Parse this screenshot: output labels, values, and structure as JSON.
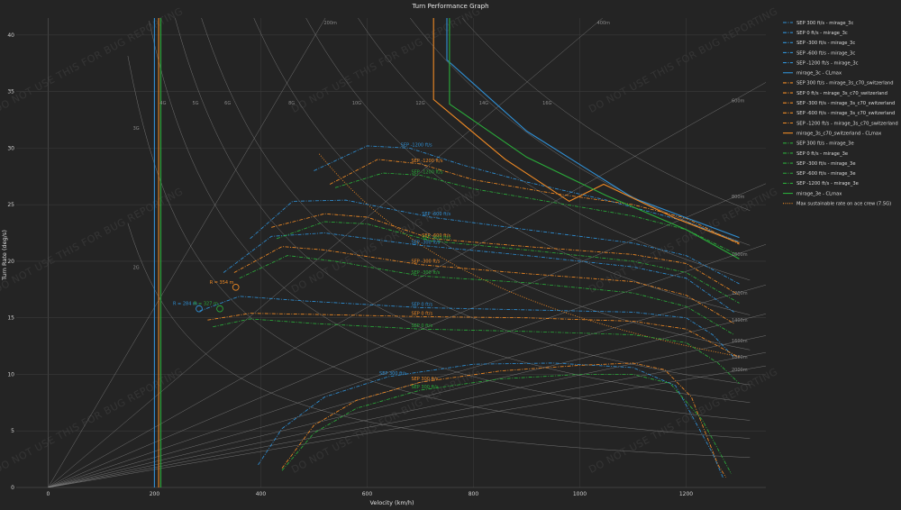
{
  "chart_data": {
    "type": "line",
    "title": "Turn Performance Graph",
    "xlabel": "Velocity (km/h)",
    "ylabel": "Turn Rate (deg/s)",
    "xlim": [
      -60,
      1350
    ],
    "ylim": [
      0,
      41.5
    ],
    "x_ticks": [
      0,
      200,
      400,
      600,
      800,
      1000,
      1200
    ],
    "y_ticks": [
      0,
      5,
      10,
      15,
      20,
      25,
      30,
      35,
      40
    ],
    "grid": true,
    "legend_position": "right",
    "watermark": "DO NOT USE THIS FOR BUG REPORTING",
    "colors": {
      "blue": "#2f8fd4",
      "orange": "#f08a24",
      "green": "#2aaa3a",
      "grid": "#3a3a3a",
      "ref": "#8d8d8d"
    },
    "radius_lines": {
      "label_suffix": "m",
      "values": [
        200,
        400,
        600,
        800,
        1000,
        1200,
        1400,
        1600,
        1800,
        2000
      ]
    },
    "load_lines": {
      "label_suffix": "G",
      "values": [
        2,
        3,
        4,
        5,
        6,
        8,
        10,
        12,
        14,
        16
      ]
    },
    "clmax_series": [
      {
        "name": "mirage_3c - CLmax",
        "color": "blue",
        "corner": [
          750,
          37.8
        ],
        "stall_x": 200,
        "high_speed": [
          [
            750,
            37.8
          ],
          [
            900,
            31.5
          ],
          [
            1100,
            25.6
          ],
          [
            1300,
            22.1
          ]
        ],
        "stall_bottom": 0
      },
      {
        "name": "mirage_3s_c70_switzerland - CLmax",
        "color": "orange",
        "corner": [
          725,
          34.3
        ],
        "stall_x": 208,
        "high_speed": [
          [
            725,
            34.3
          ],
          [
            860,
            29
          ],
          [
            980,
            25.3
          ],
          [
            1045,
            26.8
          ],
          [
            1180,
            23.8
          ],
          [
            1300,
            21.6
          ]
        ],
        "stall_bottom": 0
      },
      {
        "name": "mirage_3e - CLmax",
        "color": "green",
        "corner": [
          755,
          33.9
        ],
        "stall_x": 212,
        "high_speed": [
          [
            755,
            33.9
          ],
          [
            900,
            29.2
          ],
          [
            1050,
            25.8
          ],
          [
            1200,
            22.8
          ],
          [
            1300,
            20.2
          ]
        ],
        "stall_bottom": 0
      }
    ],
    "sep_series": [
      {
        "name": "SEP 300 ft/s - mirage_3c",
        "color": "blue",
        "label": "SEP 300 ft/s",
        "points": [
          [
            395,
            2
          ],
          [
            440,
            5.2
          ],
          [
            520,
            8
          ],
          [
            640,
            9.8
          ],
          [
            800,
            10.9
          ],
          [
            950,
            11
          ],
          [
            1100,
            10.6
          ],
          [
            1180,
            9
          ],
          [
            1250,
            3
          ],
          [
            1270,
            0.8
          ]
        ]
      },
      {
        "name": "SEP 0 ft/s - mirage_3c",
        "color": "blue",
        "label": "SEP 0 ft/s",
        "points": [
          [
            285,
            15.6
          ],
          [
            360,
            16.9
          ],
          [
            480,
            16.5
          ],
          [
            700,
            15.9
          ],
          [
            900,
            15.7
          ],
          [
            1100,
            15.5
          ],
          [
            1200,
            15
          ],
          [
            1250,
            13.5
          ],
          [
            1290,
            11.5
          ]
        ]
      },
      {
        "name": "SEP -300 ft/s - mirage_3c",
        "color": "blue",
        "label": "SEP -300 ft/s",
        "points": [
          [
            330,
            19
          ],
          [
            420,
            22.2
          ],
          [
            520,
            22.5
          ],
          [
            700,
            21.4
          ],
          [
            900,
            20.5
          ],
          [
            1100,
            19.5
          ],
          [
            1200,
            18.5
          ],
          [
            1290,
            15.5
          ]
        ]
      },
      {
        "name": "SEP -600 ft/s - mirage_3c",
        "color": "blue",
        "label": "SEP -600 ft/s",
        "points": [
          [
            380,
            22
          ],
          [
            460,
            25.3
          ],
          [
            560,
            25.4
          ],
          [
            720,
            23.9
          ],
          [
            900,
            22.8
          ],
          [
            1100,
            21.6
          ],
          [
            1200,
            20.5
          ],
          [
            1300,
            18
          ]
        ]
      },
      {
        "name": "SEP -1200 ft/s - mirage_3c",
        "color": "blue",
        "label": "SEP -1200 ft/s",
        "points": [
          [
            500,
            28
          ],
          [
            600,
            30.2
          ],
          [
            680,
            30
          ],
          [
            780,
            28.5
          ],
          [
            900,
            27
          ],
          [
            1050,
            25.4
          ],
          [
            1200,
            23.5
          ],
          [
            1300,
            21.7
          ]
        ]
      },
      {
        "name": "SEP 300 ft/s - mirage_3s_c70_switzerland",
        "color": "orange",
        "label": "SEP 300 ft/s",
        "points": [
          [
            440,
            1.7
          ],
          [
            500,
            5.5
          ],
          [
            580,
            7.7
          ],
          [
            700,
            9.3
          ],
          [
            850,
            10.3
          ],
          [
            1000,
            10.8
          ],
          [
            1100,
            11
          ],
          [
            1160,
            10.4
          ],
          [
            1210,
            8
          ],
          [
            1260,
            2
          ],
          [
            1275,
            0.9
          ]
        ]
      },
      {
        "name": "SEP 0 ft/s - mirage_3s_c70_switzerland",
        "color": "orange",
        "label": "SEP 0 ft/s",
        "points": [
          [
            300,
            14.8
          ],
          [
            380,
            15.4
          ],
          [
            500,
            15.3
          ],
          [
            700,
            15.1
          ],
          [
            900,
            15
          ],
          [
            1100,
            14.7
          ],
          [
            1200,
            14
          ],
          [
            1260,
            12.5
          ],
          [
            1300,
            11.5
          ]
        ]
      },
      {
        "name": "SEP -300 ft/s - mirage_3s_c70_switzerland",
        "color": "orange",
        "label": "SEP -300 ft/s",
        "points": [
          [
            350,
            19
          ],
          [
            440,
            21.3
          ],
          [
            520,
            21
          ],
          [
            700,
            19.7
          ],
          [
            900,
            18.9
          ],
          [
            1100,
            18.2
          ],
          [
            1200,
            17
          ],
          [
            1290,
            14.5
          ]
        ]
      },
      {
        "name": "SEP -600 ft/s - mirage_3s_c70_switzerland",
        "color": "orange",
        "label": "SEP -600 ft/s",
        "points": [
          [
            420,
            23
          ],
          [
            520,
            24.2
          ],
          [
            600,
            23.9
          ],
          [
            720,
            22
          ],
          [
            900,
            21.3
          ],
          [
            1100,
            20.6
          ],
          [
            1200,
            19.8
          ],
          [
            1300,
            17
          ]
        ]
      },
      {
        "name": "SEP -1200 ft/s - mirage_3s_c70_switzerland",
        "color": "orange",
        "label": "SEP -1200 ft/s",
        "points": [
          [
            530,
            26.8
          ],
          [
            620,
            29
          ],
          [
            700,
            28.6
          ],
          [
            800,
            27.2
          ],
          [
            950,
            26
          ],
          [
            1100,
            25
          ],
          [
            1200,
            23.8
          ],
          [
            1300,
            21.5
          ]
        ]
      },
      {
        "name": "SEP 300 ft/s - mirage_3e",
        "color": "green",
        "label": "SEP 300 ft/s",
        "points": [
          [
            440,
            1.5
          ],
          [
            500,
            4.8
          ],
          [
            580,
            7
          ],
          [
            700,
            8.6
          ],
          [
            850,
            9.6
          ],
          [
            1000,
            10
          ],
          [
            1100,
            10
          ],
          [
            1170,
            9.2
          ],
          [
            1230,
            6
          ],
          [
            1285,
            1.2
          ]
        ]
      },
      {
        "name": "SEP 0 ft/s - mirage_3e",
        "color": "green",
        "label": "SEP 0 ft/s",
        "points": [
          [
            310,
            14.2
          ],
          [
            380,
            14.9
          ],
          [
            500,
            14.5
          ],
          [
            700,
            14
          ],
          [
            900,
            13.8
          ],
          [
            1100,
            13.5
          ],
          [
            1200,
            12.8
          ],
          [
            1260,
            11
          ],
          [
            1300,
            9.2
          ]
        ]
      },
      {
        "name": "SEP -300 ft/s - mirage_3e",
        "color": "green",
        "label": "SEP -300 ft/s",
        "points": [
          [
            360,
            18.5
          ],
          [
            450,
            20.5
          ],
          [
            540,
            20
          ],
          [
            700,
            18.7
          ],
          [
            900,
            18.1
          ],
          [
            1100,
            17.2
          ],
          [
            1200,
            16
          ],
          [
            1290,
            13.5
          ]
        ]
      },
      {
        "name": "SEP -600 ft/s - mirage_3e",
        "color": "green",
        "label": "SEP -600 ft/s",
        "points": [
          [
            430,
            22
          ],
          [
            520,
            23.5
          ],
          [
            600,
            23.3
          ],
          [
            720,
            21.8
          ],
          [
            900,
            21
          ],
          [
            1100,
            20
          ],
          [
            1200,
            19
          ],
          [
            1300,
            16.3
          ]
        ]
      },
      {
        "name": "SEP -1200 ft/s - mirage_3e",
        "color": "green",
        "label": "SEP -1200 ft/s",
        "points": [
          [
            540,
            26.5
          ],
          [
            630,
            27.8
          ],
          [
            700,
            27.6
          ],
          [
            800,
            26.4
          ],
          [
            950,
            25.2
          ],
          [
            1100,
            24
          ],
          [
            1200,
            22.8
          ],
          [
            1300,
            20.5
          ]
        ]
      }
    ],
    "sep_label_x": {
      "SEP 300 ft/s": 700,
      "SEP 0 ft/s": 700,
      "SEP -300 ft/s": 700,
      "SEP -600 ft/s": 700,
      "SEP -1200 ft/s": 700
    },
    "sustainable_series": {
      "name": "Max sustainable rate on ace crew (7.5G)",
      "color": "orange",
      "g": 7.5,
      "x_range": [
        510,
        1300
      ]
    },
    "corner_markers": [
      {
        "color": "blue",
        "label": "R = 284 m",
        "x": 284,
        "y": 15.8
      },
      {
        "color": "green",
        "label": "R = 327 m",
        "x": 323,
        "y": 15.8
      },
      {
        "color": "orange",
        "label": "R = 354 m",
        "x": 353,
        "y": 17.7
      }
    ]
  }
}
